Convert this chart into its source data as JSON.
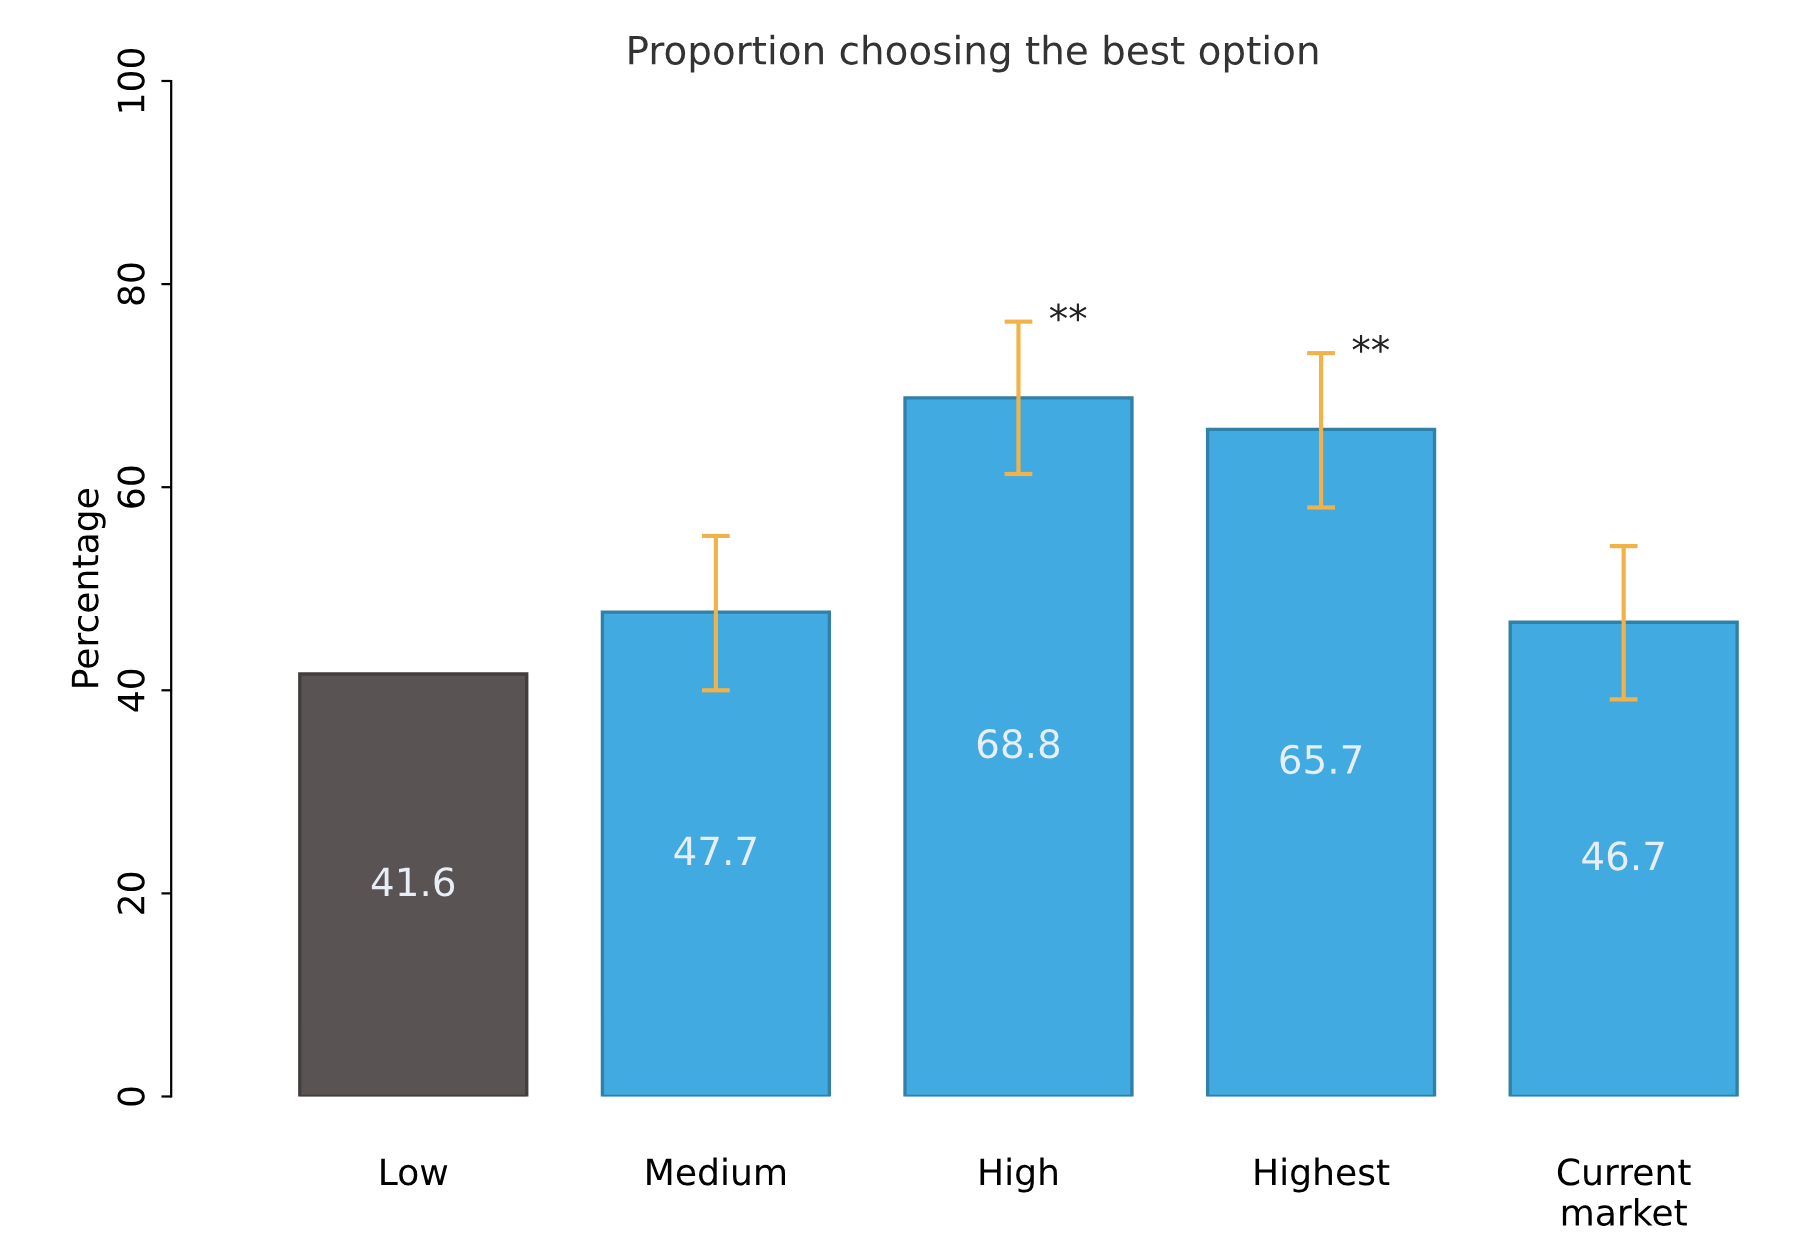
{
  "chart_data": {
    "type": "bar",
    "title": "Proportion choosing the best option",
    "ylabel": "Percentage",
    "categories": [
      "Low",
      "Medium",
      "High",
      "Highest",
      "Current market"
    ],
    "values": [
      41.6,
      47.7,
      68.8,
      65.7,
      46.7
    ],
    "colors": [
      "#595353",
      "#41aae0",
      "#41aae0",
      "#41aae0",
      "#41aae0"
    ],
    "errors": [
      null,
      [
        40.0,
        55.2
      ],
      [
        61.3,
        76.3
      ],
      [
        58.0,
        73.2
      ],
      [
        39.1,
        54.2
      ]
    ],
    "annotations": [
      {
        "text": "**",
        "x": "High",
        "y": 76.3
      },
      {
        "text": "**",
        "x": "Highest",
        "y": 73.2
      }
    ],
    "data_labels": true,
    "ylim": [
      0,
      100
    ],
    "yticks": [
      0,
      20,
      40,
      60,
      80,
      100
    ],
    "grid": false,
    "legend": false
  }
}
